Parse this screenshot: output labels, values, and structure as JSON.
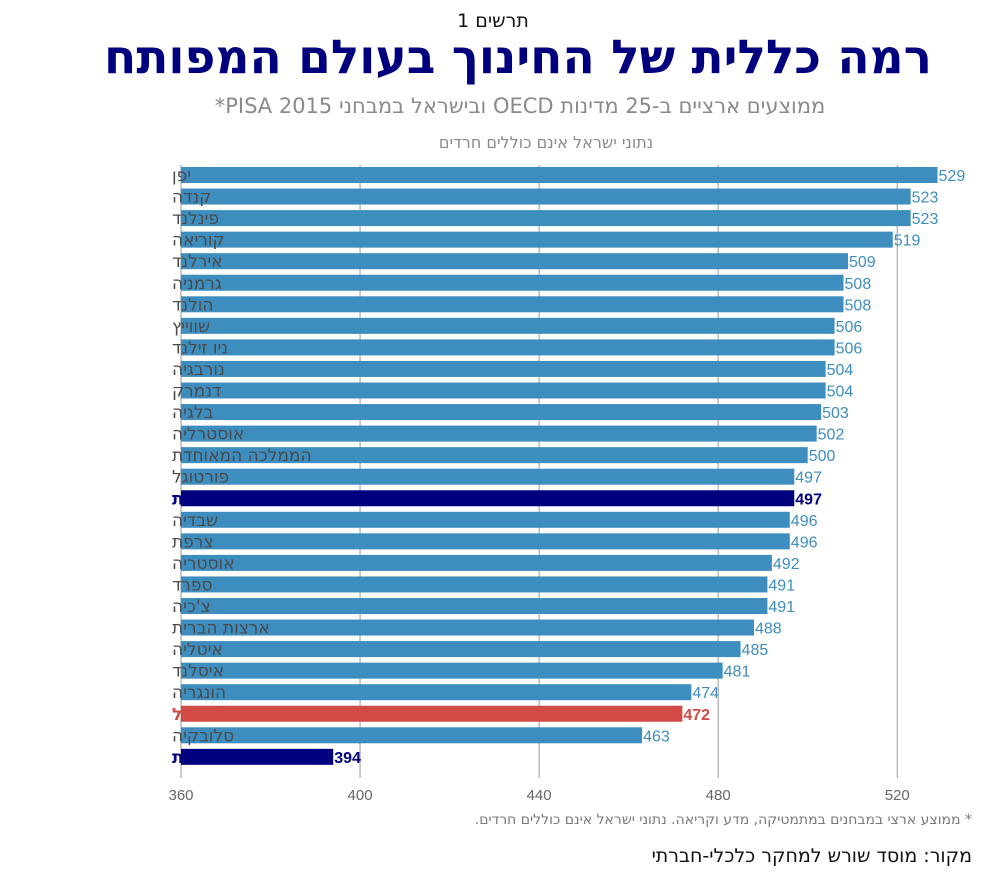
{
  "header": {
    "figure_label": "תרשים 1",
    "title": "רמה כללית של החינוך בעולם המפותח",
    "subtitle": "ממוצעים ארציים ב-25 מדינות OECD ובישראל במבחני PISA 2015*",
    "note": "נתוני ישראל אינם כוללים חרדים"
  },
  "footer": {
    "footnote": "* ממוצע ארצי במבחנים במתמטיקה, מדע וקריאה.  נתוני ישראל אינם כוללים חרדים.",
    "source": "מקור:  מוסד שורש למחקר כלכלי-חברתי"
  },
  "colors": {
    "default_bar": "#3d8dbe",
    "default_label": "#4a4a4a",
    "highlight_hebrew_arabic": "#00007f",
    "highlight_israel": "#d24a45",
    "grid": "#9a9a9a",
    "axis_text": "#666666"
  },
  "chart_data": {
    "type": "bar",
    "orientation": "horizontal",
    "xlim": [
      360,
      530
    ],
    "xticks": [
      360,
      400,
      440,
      480,
      520
    ],
    "grid": true,
    "categories": [
      "יפן",
      "קנדה",
      "פינלנד",
      "קוריאה",
      "אירלנד",
      "גרמניה",
      "הולנד",
      "שווייץ",
      "ניו זילנד",
      "נורבגיה",
      "דנמרק",
      "בלגיה",
      "אוסטרליה",
      "הממלכה המאוחדת",
      "פורטוגל",
      "דוברי עברית",
      "שבדיה",
      "צרפת",
      "אוסטריה",
      "ספרד",
      "צ'כיה",
      "ארצות הברית",
      "איטליה",
      "איסלנד",
      "הונגריה",
      "ישראל",
      "סלובקיה",
      "דוברי ערבית"
    ],
    "values": [
      529,
      523,
      523,
      519,
      509,
      508,
      508,
      506,
      506,
      504,
      504,
      503,
      502,
      500,
      497,
      497,
      496,
      496,
      492,
      491,
      491,
      488,
      485,
      481,
      474,
      472,
      463,
      394
    ],
    "highlights": {
      "דוברי עברית": "highlight_hebrew_arabic",
      "ישראל": "highlight_israel",
      "דוברי ערבית": "highlight_hebrew_arabic"
    }
  }
}
